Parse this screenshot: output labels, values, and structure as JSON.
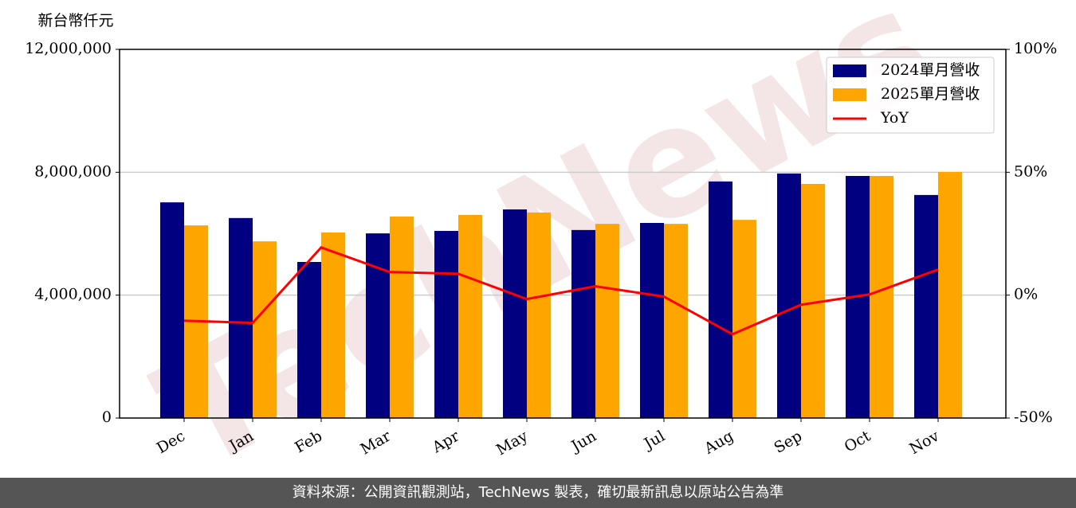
{
  "chart_data": {
    "type": "bar",
    "unit_label": "新台幣仟元",
    "watermark": "TechNews",
    "categories": [
      "Dec",
      "Jan",
      "Feb",
      "Mar",
      "Apr",
      "May",
      "Jun",
      "Jul",
      "Aug",
      "Sep",
      "Oct",
      "Nov"
    ],
    "series": [
      {
        "name": "2024單月營收",
        "type": "bar",
        "color": "#000080",
        "values": [
          7020000,
          6510000,
          5080000,
          6010000,
          6090000,
          6790000,
          6120000,
          6350000,
          7700000,
          7960000,
          7880000,
          7260000
        ]
      },
      {
        "name": "2025單月營收",
        "type": "bar",
        "color": "#ffa500",
        "values": [
          6270000,
          5750000,
          6040000,
          6560000,
          6610000,
          6690000,
          6320000,
          6320000,
          6450000,
          7620000,
          7880000,
          8010000
        ]
      },
      {
        "name": "YoY",
        "type": "line",
        "axis": "y2",
        "color": "#ff0000",
        "values": [
          -10.4,
          -11.3,
          19.4,
          9.4,
          8.7,
          -1.6,
          3.6,
          -0.6,
          -15.9,
          -3.9,
          0.3,
          10.4
        ]
      }
    ],
    "ylim": [
      0,
      12000000
    ],
    "yticks": [
      0,
      {
        "value": 4000000,
        "label": "4,000,000"
      },
      {
        "value": 8000000,
        "label": "8,000,000"
      },
      {
        "value": 12000000,
        "label": "12,000,000"
      }
    ],
    "y2lim": [
      -50,
      100
    ],
    "y2ticks": [
      {
        "value": -50,
        "label": "-50%"
      },
      {
        "value": 0,
        "label": "0%"
      },
      {
        "value": 50,
        "label": "50%"
      },
      {
        "value": 100,
        "label": "100%"
      }
    ],
    "grid": true,
    "legend": "upper right",
    "footer": "資料來源：公開資訊觀測站，TechNews 製表，確切最新訊息以原站公告為準"
  }
}
